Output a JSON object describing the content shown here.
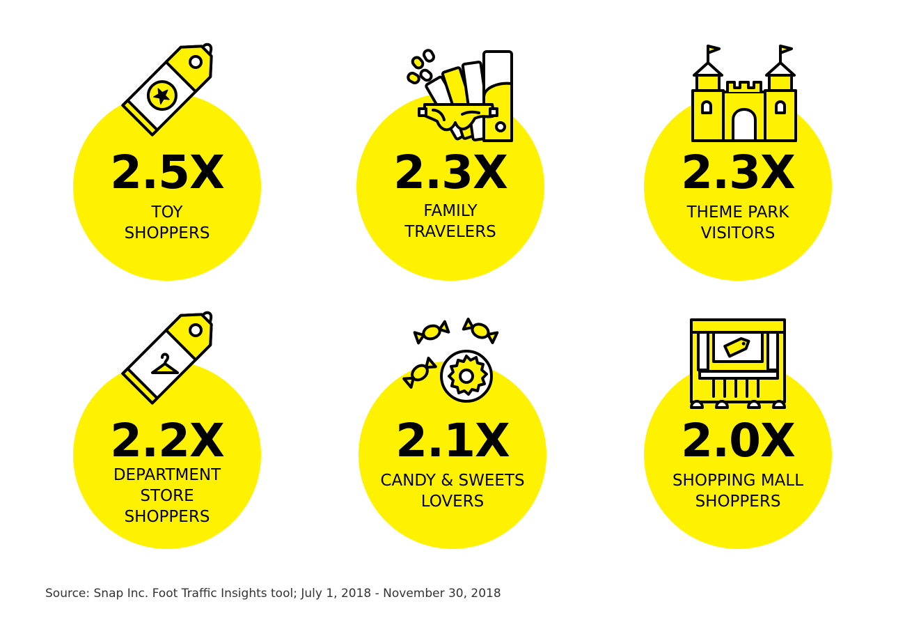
{
  "tiles": [
    {
      "value": "2.5X",
      "label": [
        "TOY",
        "SHOPPERS"
      ],
      "icon": "price-tag-star-icon"
    },
    {
      "value": "2.3X",
      "label": [
        "FAMILY",
        "TRAVELERS"
      ],
      "icon": "tickets-goggles-icon"
    },
    {
      "value": "2.3X",
      "label": [
        "THEME PARK",
        "VISITORS"
      ],
      "icon": "castle-icon"
    },
    {
      "value": "2.2X",
      "label": [
        "DEPARTMENT",
        "STORE",
        "SHOPPERS"
      ],
      "icon": "price-tag-hanger-icon"
    },
    {
      "value": "2.1X",
      "label": [
        "CANDY & SWEETS",
        "LOVERS"
      ],
      "icon": "candy-donut-icon"
    },
    {
      "value": "2.0X",
      "label": [
        "SHOPPING MALL",
        "SHOPPERS"
      ],
      "icon": "storefront-icon"
    }
  ],
  "source": "Source: Snap Inc. Foot Traffic Insights tool; July 1, 2018 - November 30, 2018",
  "colors": {
    "accent": "#FFF200",
    "ink": "#000000"
  }
}
